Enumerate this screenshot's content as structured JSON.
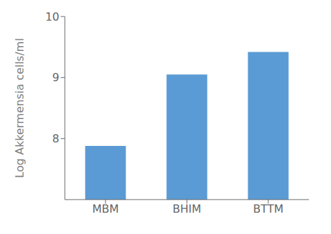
{
  "chart_data": {
    "type": "bar",
    "categories": [
      "MBM",
      "BHIM",
      "BTTM"
    ],
    "values": [
      7.88,
      9.05,
      9.42
    ],
    "color": "#5B9BD5",
    "ylabel": "Log Akkermensia cells/ml",
    "ylim": [
      7.0,
      10.0
    ],
    "yticks": [
      8,
      9,
      10
    ],
    "grid": false
  }
}
